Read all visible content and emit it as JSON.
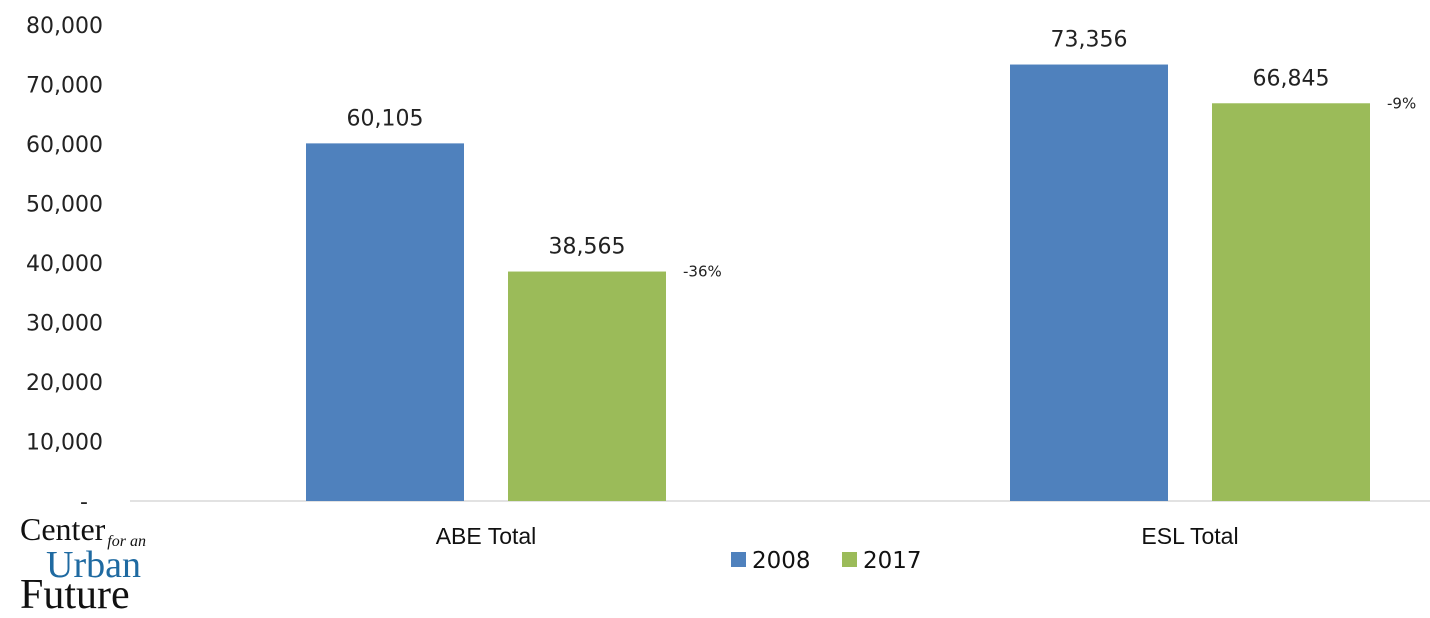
{
  "chart_data": {
    "type": "bar",
    "categories": [
      "ABE Total",
      "ESL Total"
    ],
    "series": [
      {
        "name": "2008",
        "values": [
          60105,
          73356
        ],
        "color": "#4f81bd"
      },
      {
        "name": "2017",
        "values": [
          38565,
          66845
        ],
        "color": "#9bbb59"
      }
    ],
    "data_labels": [
      [
        "60,105",
        "73,356"
      ],
      [
        "38,565",
        "66,845"
      ]
    ],
    "change_labels": [
      "-36%",
      "-9%"
    ],
    "yticks": [
      "-",
      "10,000",
      "20,000",
      "30,000",
      "40,000",
      "50,000",
      "60,000",
      "70,000",
      "80,000"
    ],
    "ylim": [
      0,
      80000
    ],
    "grid": false,
    "legend": "bottom-center"
  },
  "logo": {
    "line1": "Center",
    "line1_small": "for an",
    "line2": "Urban",
    "line3": "Future"
  }
}
